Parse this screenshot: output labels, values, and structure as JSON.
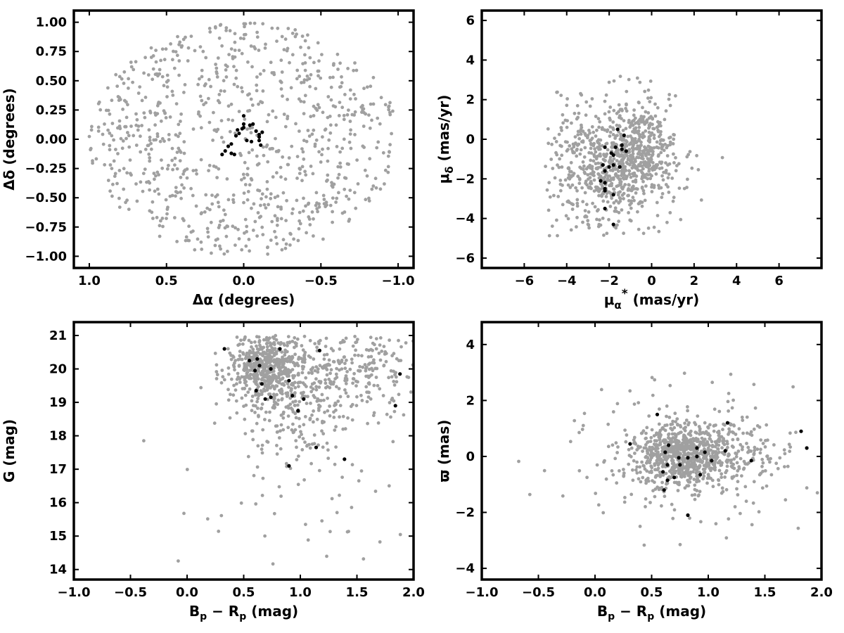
{
  "colors": {
    "field": "#a0a0a0",
    "members": "#000000"
  },
  "chart_data": [
    {
      "type": "scatter",
      "id": "sky",
      "xlabel": "Δα (degrees)",
      "ylabel": "Δδ (degrees)",
      "xlim": [
        1.1,
        -1.1
      ],
      "ylim": [
        -1.1,
        1.1
      ],
      "xticks": [
        1.0,
        0.5,
        0.0,
        -0.5,
        -1.0
      ],
      "xtick_labels": [
        "1.0",
        "0.5",
        "0.0",
        "−0.5",
        "−1.0"
      ],
      "yticks": [
        -1.0,
        -0.75,
        -0.5,
        -0.25,
        0.0,
        0.25,
        0.5,
        0.75,
        1.0
      ],
      "ytick_labels": [
        "−1.00",
        "−0.75",
        "−0.50",
        "−0.25",
        "0.00",
        "0.25",
        "0.50",
        "0.75",
        "1.00"
      ],
      "grid": false,
      "series": [
        {
          "role": "field",
          "generator": {
            "kind": "disk",
            "n": 850,
            "radius": 1.0
          }
        },
        {
          "role": "members",
          "points": [
            [
              0.0,
              0.2
            ],
            [
              0.0,
              0.13
            ],
            [
              0.0,
              0.1
            ],
            [
              -0.04,
              0.12
            ],
            [
              0.03,
              0.05
            ],
            [
              0.05,
              0.03
            ],
            [
              -0.02,
              -0.01
            ],
            [
              -0.05,
              -0.02
            ],
            [
              0.08,
              -0.04
            ],
            [
              0.1,
              -0.06
            ],
            [
              0.12,
              -0.1
            ],
            [
              0.08,
              -0.12
            ],
            [
              0.06,
              -0.13
            ],
            [
              0.14,
              -0.13
            ],
            [
              -0.06,
              0.13
            ],
            [
              -0.08,
              0.07
            ],
            [
              -0.12,
              0.06
            ],
            [
              -0.1,
              0.02
            ],
            [
              -0.1,
              -0.01
            ],
            [
              -0.1,
              0.04
            ],
            [
              -0.11,
              -0.05
            ],
            [
              0.01,
              0.09
            ],
            [
              0.04,
              0.08
            ]
          ]
        }
      ]
    },
    {
      "type": "scatter",
      "id": "proper-motion",
      "xlabel": "μα* (mas/yr)",
      "ylabel": "μδ (mas/yr)",
      "xlim": [
        -8.0,
        8.0
      ],
      "ylim": [
        -6.5,
        6.5
      ],
      "xticks": [
        -6,
        -4,
        -2,
        0,
        2,
        4,
        6
      ],
      "xtick_labels": [
        "−6",
        "−4",
        "−2",
        "0",
        "2",
        "4",
        "6"
      ],
      "yticks": [
        -6,
        -4,
        -2,
        0,
        2,
        4,
        6
      ],
      "ytick_labels": [
        "−6",
        "−4",
        "−2",
        "0",
        "2",
        "4",
        "6"
      ],
      "grid": false,
      "series": [
        {
          "role": "field",
          "generator": {
            "kind": "pm",
            "n": 950
          }
        },
        {
          "role": "members",
          "points": [
            [
              -1.6,
              0.5
            ],
            [
              -1.3,
              0.2
            ],
            [
              -1.4,
              -0.3
            ],
            [
              -1.4,
              -0.5
            ],
            [
              -1.7,
              -0.4
            ],
            [
              -2.2,
              -0.4
            ],
            [
              -1.8,
              -0.8
            ],
            [
              -1.5,
              -1.4
            ],
            [
              -1.8,
              -1.3
            ],
            [
              -2.0,
              -1.4
            ],
            [
              -2.3,
              -1.3
            ],
            [
              -2.2,
              -1.6
            ],
            [
              -2.4,
              -2.1
            ],
            [
              -2.2,
              -2.2
            ],
            [
              -2.2,
              -2.5
            ],
            [
              -2.2,
              -2.6
            ],
            [
              -1.8,
              -2.8
            ],
            [
              -2.2,
              -3.5
            ],
            [
              -1.8,
              -4.3
            ],
            [
              -1.9,
              -0.7
            ],
            [
              -1.2,
              -0.6
            ]
          ]
        }
      ]
    },
    {
      "type": "scatter",
      "id": "cmd",
      "xlabel": "Bp − Rp (mag)",
      "ylabel": "G (mag)",
      "xlim": [
        -1.0,
        2.0
      ],
      "ylim": [
        13.7,
        21.4
      ],
      "xticks": [
        -1.0,
        -0.5,
        0.0,
        0.5,
        1.0,
        1.5,
        2.0
      ],
      "xtick_labels": [
        "−1.0",
        "−0.5",
        "0.0",
        "0.5",
        "1.0",
        "1.5",
        "2.0"
      ],
      "yticks": [
        14,
        15,
        16,
        17,
        18,
        19,
        20,
        21
      ],
      "ytick_labels": [
        "14",
        "15",
        "16",
        "17",
        "18",
        "19",
        "20",
        "21"
      ],
      "grid": false,
      "series": [
        {
          "role": "field",
          "generator": {
            "kind": "cmd",
            "n": 1000
          }
        },
        {
          "role": "members",
          "points": [
            [
              0.33,
              20.6
            ],
            [
              0.82,
              20.6
            ],
            [
              1.17,
              20.55
            ],
            [
              0.55,
              20.25
            ],
            [
              0.62,
              20.3
            ],
            [
              0.64,
              20.1
            ],
            [
              0.6,
              19.95
            ],
            [
              0.74,
              20.0
            ],
            [
              0.9,
              19.65
            ],
            [
              0.66,
              19.55
            ],
            [
              0.61,
              19.35
            ],
            [
              0.69,
              19.1
            ],
            [
              0.74,
              19.15
            ],
            [
              0.93,
              19.2
            ],
            [
              1.03,
              19.1
            ],
            [
              0.98,
              18.75
            ],
            [
              1.88,
              19.85
            ],
            [
              1.84,
              18.9
            ],
            [
              1.14,
              17.65
            ],
            [
              1.39,
              17.3
            ],
            [
              0.9,
              17.1
            ]
          ]
        }
      ]
    },
    {
      "type": "scatter",
      "id": "parallax",
      "xlabel": "Bp − Rp (mag)",
      "ylabel": "ϖ (mas)",
      "xlim": [
        -1.0,
        2.0
      ],
      "ylim": [
        -4.4,
        4.8
      ],
      "xticks": [
        -1.0,
        -0.5,
        0.0,
        0.5,
        1.0,
        1.5,
        2.0
      ],
      "xtick_labels": [
        "−1.0",
        "−0.5",
        "0.0",
        "0.5",
        "1.0",
        "1.5",
        "2.0"
      ],
      "yticks": [
        -4,
        -2,
        0,
        2,
        4
      ],
      "ytick_labels": [
        "−4",
        "−2",
        "0",
        "2",
        "4"
      ],
      "grid": false,
      "series": [
        {
          "role": "field",
          "generator": {
            "kind": "plx",
            "n": 1000
          }
        },
        {
          "role": "members",
          "points": [
            [
              0.55,
              1.5
            ],
            [
              0.31,
              0.45
            ],
            [
              0.62,
              0.15
            ],
            [
              0.65,
              0.4
            ],
            [
              0.74,
              -0.05
            ],
            [
              0.75,
              -0.3
            ],
            [
              0.82,
              -0.05
            ],
            [
              0.9,
              0.3
            ],
            [
              0.9,
              0.0
            ],
            [
              0.97,
              0.15
            ],
            [
              1.03,
              -0.15
            ],
            [
              1.15,
              0.2
            ],
            [
              1.17,
              1.2
            ],
            [
              0.6,
              -0.55
            ],
            [
              0.64,
              -0.3
            ],
            [
              0.64,
              -0.85
            ],
            [
              0.61,
              -1.2
            ],
            [
              0.7,
              -0.75
            ],
            [
              0.93,
              -0.65
            ],
            [
              0.82,
              -2.1
            ],
            [
              1.38,
              -0.15
            ],
            [
              1.82,
              0.9
            ],
            [
              1.87,
              0.3
            ]
          ]
        }
      ]
    }
  ]
}
